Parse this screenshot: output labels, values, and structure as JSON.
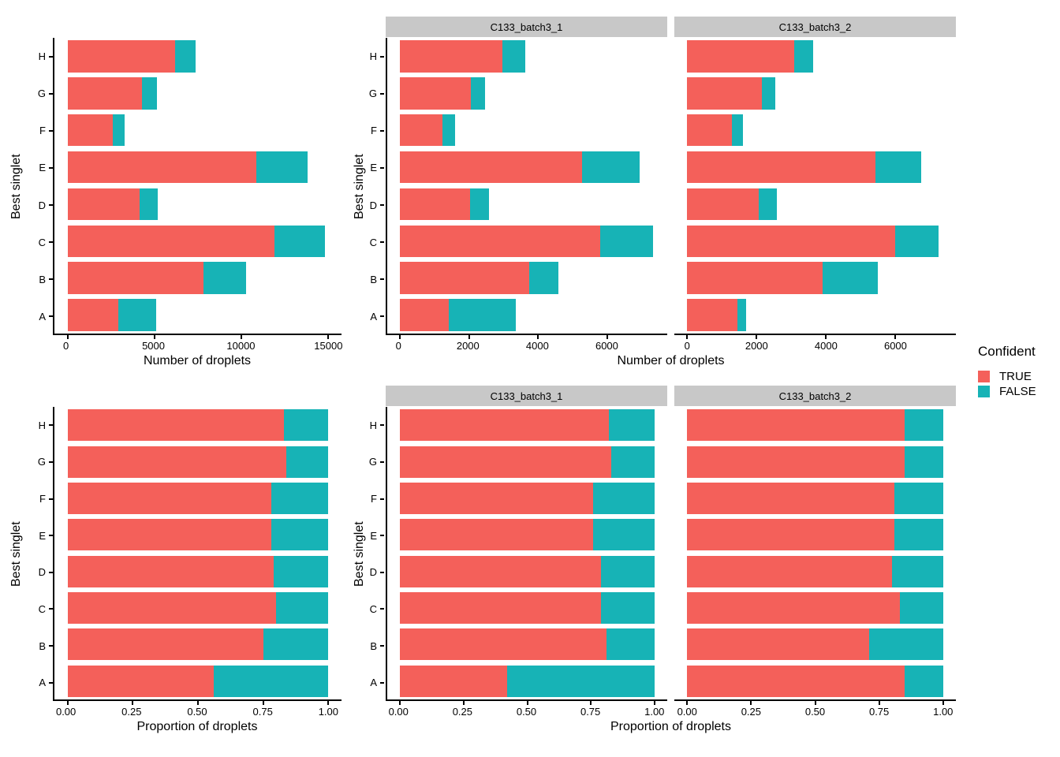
{
  "figure": {
    "background": "#FFFFFF"
  },
  "colors": {
    "true_fill": "#F4605A",
    "false_fill": "#17B3B6",
    "strip_bg": "#C8C8C8",
    "axis_line": "#000000",
    "text": "#000000"
  },
  "legend": {
    "title": "Confident",
    "items": [
      {
        "label": "TRUE",
        "color": "#F4605A"
      },
      {
        "label": "FALSE",
        "color": "#17B3B6"
      }
    ]
  },
  "chart_data": [
    {
      "type": "bar",
      "stacked": true,
      "orientation": "horizontal",
      "xlabel": "Number of droplets",
      "ylabel": "Best singlet",
      "categories": [
        "A",
        "B",
        "C",
        "D",
        "E",
        "F",
        "G",
        "H"
      ],
      "category_display": "H at top, A at bottom",
      "xticks": [
        0,
        5000,
        10000,
        15000
      ],
      "xtick_labels": [
        "0",
        "5000",
        "10000",
        "15000"
      ],
      "xlim": [
        0,
        15000
      ],
      "grid": false,
      "series": [
        {
          "name": "TRUE",
          "values": [
            2900,
            7800,
            11900,
            4150,
            10850,
            2600,
            4300,
            6200
          ]
        },
        {
          "name": "FALSE",
          "values": [
            2200,
            2450,
            2900,
            1050,
            2950,
            700,
            850,
            1150
          ]
        }
      ]
    },
    {
      "type": "bar",
      "stacked": true,
      "orientation": "horizontal",
      "faceted": true,
      "xlabel": "Number of droplets",
      "ylabel": "Best singlet",
      "categories": [
        "A",
        "B",
        "C",
        "D",
        "E",
        "F",
        "G",
        "H"
      ],
      "category_display": "H at top, A at bottom",
      "xticks": [
        0,
        2000,
        4000,
        6000
      ],
      "xtick_labels": [
        "0",
        "2000",
        "4000",
        "6000"
      ],
      "xlim": [
        0,
        7370
      ],
      "grid": false,
      "facets": [
        {
          "label": "C133_batch3_1",
          "series": [
            {
              "name": "TRUE",
              "values": [
                1420,
                3740,
                5790,
                2040,
                5270,
                1230,
                2060,
                2960
              ]
            },
            {
              "name": "FALSE",
              "values": [
                1940,
                850,
                1530,
                530,
                1660,
                370,
                410,
                670
              ]
            }
          ]
        },
        {
          "label": "C133_batch3_2",
          "series": [
            {
              "name": "TRUE",
              "values": [
                1440,
                3910,
                5990,
                2060,
                5420,
                1290,
                2150,
                3080
              ]
            },
            {
              "name": "FALSE",
              "values": [
                260,
                1570,
                1240,
                520,
                1310,
                320,
                390,
                550
              ]
            }
          ]
        }
      ]
    },
    {
      "type": "bar",
      "stacked": true,
      "orientation": "horizontal",
      "xlabel": "Proportion of droplets",
      "ylabel": "Best singlet",
      "categories": [
        "A",
        "B",
        "C",
        "D",
        "E",
        "F",
        "G",
        "H"
      ],
      "category_display": "H at top, A at bottom",
      "xticks": [
        0,
        0.25,
        0.5,
        0.75,
        1
      ],
      "xtick_labels": [
        "0.00",
        "0.25",
        "0.50",
        "0.75",
        "1.00"
      ],
      "xlim": [
        0,
        1
      ],
      "grid": false,
      "series": [
        {
          "name": "TRUE",
          "values": [
            0.56,
            0.75,
            0.8,
            0.79,
            0.78,
            0.78,
            0.84,
            0.83
          ]
        },
        {
          "name": "FALSE",
          "values": [
            0.44,
            0.25,
            0.2,
            0.21,
            0.22,
            0.22,
            0.16,
            0.17
          ]
        }
      ]
    },
    {
      "type": "bar",
      "stacked": true,
      "orientation": "horizontal",
      "faceted": true,
      "xlabel": "Proportion of droplets",
      "ylabel": "Best singlet",
      "categories": [
        "A",
        "B",
        "C",
        "D",
        "E",
        "F",
        "G",
        "H"
      ],
      "category_display": "H at top, A at bottom",
      "xticks": [
        0,
        0.25,
        0.5,
        0.75,
        1
      ],
      "xtick_labels": [
        "0.00",
        "0.25",
        "0.50",
        "0.75",
        "1.00"
      ],
      "xlim": [
        0,
        1
      ],
      "grid": false,
      "facets": [
        {
          "label": "C133_batch3_1",
          "series": [
            {
              "name": "TRUE",
              "values": [
                0.42,
                0.81,
                0.79,
                0.79,
                0.76,
                0.76,
                0.83,
                0.82
              ]
            },
            {
              "name": "FALSE",
              "values": [
                0.58,
                0.19,
                0.21,
                0.21,
                0.24,
                0.24,
                0.17,
                0.18
              ]
            }
          ]
        },
        {
          "label": "C133_batch3_2",
          "series": [
            {
              "name": "TRUE",
              "values": [
                0.85,
                0.71,
                0.83,
                0.8,
                0.81,
                0.81,
                0.85,
                0.85
              ]
            },
            {
              "name": "FALSE",
              "values": [
                0.15,
                0.29,
                0.17,
                0.2,
                0.19,
                0.19,
                0.15,
                0.15
              ]
            }
          ]
        }
      ]
    }
  ]
}
